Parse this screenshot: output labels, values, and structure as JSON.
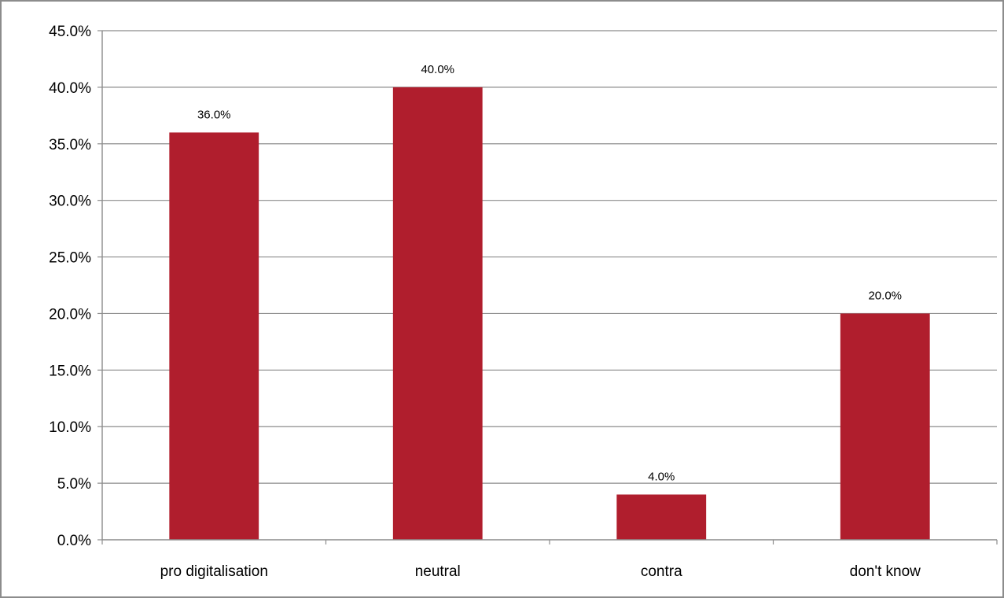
{
  "chart_data": {
    "type": "bar",
    "categories": [
      "pro digitalisation",
      "neutral",
      "contra",
      "don't know"
    ],
    "values": [
      36.0,
      40.0,
      4.0,
      20.0
    ],
    "data_labels": [
      "36.0%",
      "40.0%",
      "4.0%",
      "20.0%"
    ],
    "yticks": [
      "0.0%",
      "5.0%",
      "10.0%",
      "15.0%",
      "20.0%",
      "25.0%",
      "30.0%",
      "35.0%",
      "40.0%",
      "45.0%"
    ],
    "ylim": [
      0,
      45
    ],
    "ytick_step": 5,
    "grid": true,
    "legend": "none",
    "title": "",
    "xlabel": "",
    "ylabel": "",
    "bar_color": "#B01E2D",
    "grid_color": "#8C8C8C",
    "frame_color": "#8C8C8C"
  }
}
